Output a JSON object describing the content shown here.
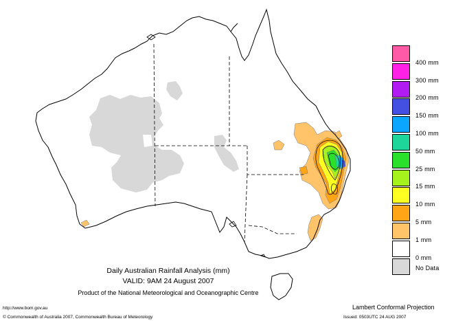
{
  "header": {
    "line1": "Daily Australian Rainfall Analysis (mm)",
    "line2": "VALID: 9AM 24 August 2007",
    "line3": "Product of the National Meteorological and Oceanographic Centre"
  },
  "footer": {
    "url": "http://www.bom.gov.au",
    "copyright": "© Commonwealth of Australia 2007, Commonwealth Bureau of Meteorology",
    "projection": "Lambert Conformal Projection",
    "issued": "Issued: 0503UTC 24 AUG 2007"
  },
  "legend": {
    "items": [
      {
        "label": "",
        "color": "#ff5aa6"
      },
      {
        "label": "400 mm",
        "color": "#ff22e6"
      },
      {
        "label": "300 mm",
        "color": "#b11cf2"
      },
      {
        "label": "200 mm",
        "color": "#4450e2"
      },
      {
        "label": "150 mm",
        "color": "#0aa6ff"
      },
      {
        "label": "100 mm",
        "color": "#1ed59a"
      },
      {
        "label": "50 mm",
        "color": "#2ae02a"
      },
      {
        "label": "25 mm",
        "color": "#a6f21c"
      },
      {
        "label": "15 mm",
        "color": "#ffff22"
      },
      {
        "label": "10 mm",
        "color": "#ffa516"
      },
      {
        "label": "5 mm",
        "color": "#ffc36a"
      },
      {
        "label": "1 mm",
        "color": "#ffffff"
      },
      {
        "label": "0 mm",
        "color": "#d8d8d8"
      },
      {
        "label": "No Data",
        "color": ""
      }
    ]
  },
  "colors": {
    "nodata": "#d8d8d8",
    "rain1": "#ffc36a",
    "rain5": "#ffa516",
    "rain10": "#ffff22",
    "rain15": "#a6f21c",
    "rain25": "#2ae02a",
    "rain50": "#1ed59a",
    "rain100": "#0aa6ff",
    "rain150": "#4450e2"
  }
}
